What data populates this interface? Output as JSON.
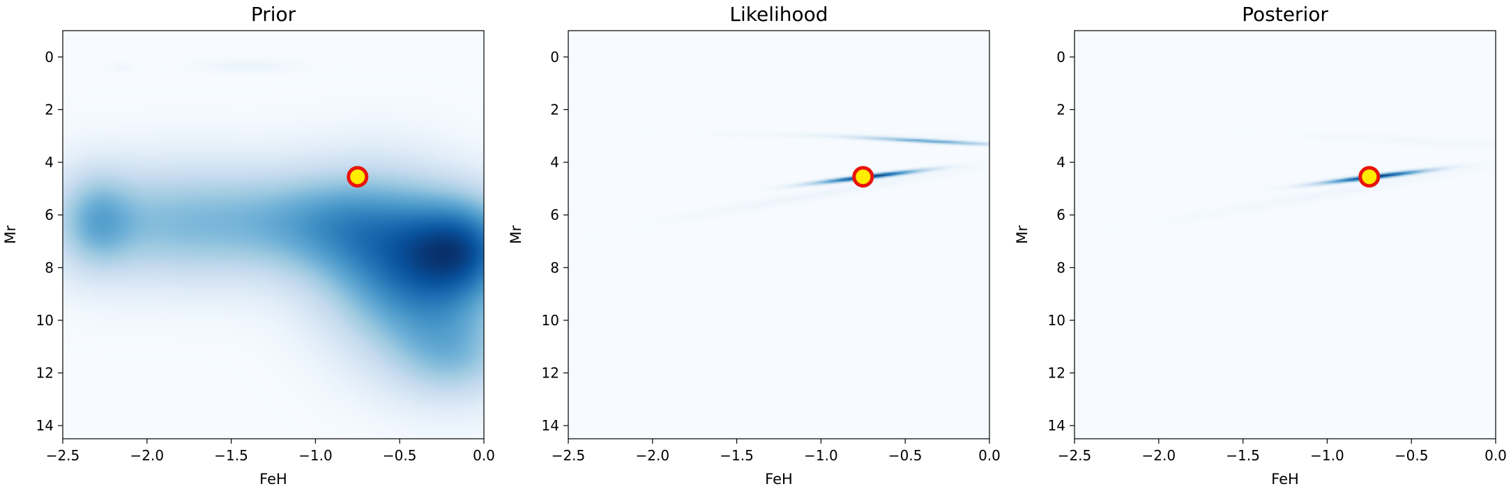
{
  "chart_data": [
    {
      "type": "heatmap",
      "title": "Prior",
      "xlabel": "FeH",
      "ylabel": "Mr",
      "xlim": [
        -2.5,
        0.0
      ],
      "ylim": [
        14.5,
        -1.0
      ],
      "xticks": [
        -2.5,
        -2.0,
        -1.5,
        -1.0,
        -0.5,
        0.0
      ],
      "xtick_labels": [
        "−2.5",
        "−2.0",
        "−1.5",
        "−1.0",
        "−0.5",
        "0.0"
      ],
      "yticks": [
        0,
        2,
        4,
        6,
        8,
        10,
        12,
        14
      ],
      "ytick_labels": [
        "0",
        "2",
        "4",
        "6",
        "8",
        "10",
        "12",
        "14"
      ],
      "colormap": "Blues",
      "marker": {
        "x": -0.75,
        "y": 4.55,
        "edge_color": "#e8140c",
        "face_color": "#ffec00"
      },
      "density_components": [
        {
          "cx": -1.8,
          "cy": 6.3,
          "sx": 0.55,
          "sy": 1.6,
          "w": 0.55
        },
        {
          "cx": -2.3,
          "cy": 6.2,
          "sx": 0.15,
          "sy": 1.3,
          "w": 0.35
        },
        {
          "cx": -1.0,
          "cy": 6.2,
          "sx": 0.35,
          "sy": 1.3,
          "w": 0.3
        },
        {
          "cx": -0.6,
          "cy": 7.0,
          "sx": 0.35,
          "sy": 2.0,
          "w": 0.6
        },
        {
          "cx": -0.1,
          "cy": 7.2,
          "sx": 0.25,
          "sy": 1.4,
          "w": 0.75
        },
        {
          "cx": -0.35,
          "cy": 9.5,
          "sx": 0.35,
          "sy": 2.0,
          "w": 0.5
        },
        {
          "cx": -0.15,
          "cy": 11.5,
          "sx": 0.25,
          "sy": 1.2,
          "w": 0.3
        },
        {
          "cx": -1.4,
          "cy": 0.35,
          "sx": 0.2,
          "sy": 0.15,
          "w": 0.08
        },
        {
          "cx": -2.15,
          "cy": 0.4,
          "sx": 0.05,
          "sy": 0.1,
          "w": 0.05
        }
      ]
    },
    {
      "type": "heatmap",
      "title": "Likelihood",
      "xlabel": "FeH",
      "ylabel": "Mr",
      "xlim": [
        -2.5,
        0.0
      ],
      "ylim": [
        14.5,
        -1.0
      ],
      "xticks": [
        -2.5,
        -2.0,
        -1.5,
        -1.0,
        -0.5,
        0.0
      ],
      "xtick_labels": [
        "−2.5",
        "−2.0",
        "−1.5",
        "−1.0",
        "−0.5",
        "0.0"
      ],
      "yticks": [
        0,
        2,
        4,
        6,
        8,
        10,
        12,
        14
      ],
      "ytick_labels": [
        "0",
        "2",
        "4",
        "6",
        "8",
        "10",
        "12",
        "14"
      ],
      "colormap": "Blues",
      "marker": {
        "x": -0.75,
        "y": 4.55,
        "edge_color": "#e8140c",
        "face_color": "#ffec00"
      },
      "density_components": [
        {
          "cx": -0.72,
          "cy": 4.55,
          "sx": 0.22,
          "sy": 0.06,
          "angle": -7,
          "w": 1.0
        },
        {
          "cx": -0.35,
          "cy": 3.2,
          "sx": 0.28,
          "sy": 0.05,
          "angle": 3,
          "w": 0.55
        },
        {
          "cx": -1.0,
          "cy": 5.2,
          "sx": 0.6,
          "sy": 0.12,
          "angle": -10,
          "w": 0.05
        },
        {
          "cx": -0.9,
          "cy": 3.0,
          "sx": 0.5,
          "sy": 0.08,
          "angle": 1,
          "w": 0.04
        }
      ]
    },
    {
      "type": "heatmap",
      "title": "Posterior",
      "xlabel": "FeH",
      "ylabel": "Mr",
      "xlim": [
        -2.5,
        0.0
      ],
      "ylim": [
        14.5,
        -1.0
      ],
      "xticks": [
        -2.5,
        -2.0,
        -1.5,
        -1.0,
        -0.5,
        0.0
      ],
      "xtick_labels": [
        "−2.5",
        "−2.0",
        "−1.5",
        "−1.0",
        "−0.5",
        "0.0"
      ],
      "yticks": [
        0,
        2,
        4,
        6,
        8,
        10,
        12,
        14
      ],
      "ytick_labels": [
        "0",
        "2",
        "4",
        "6",
        "8",
        "10",
        "12",
        "14"
      ],
      "colormap": "Blues",
      "marker": {
        "x": -0.75,
        "y": 4.55,
        "edge_color": "#e8140c",
        "face_color": "#ffec00"
      },
      "density_components": [
        {
          "cx": -0.72,
          "cy": 4.55,
          "sx": 0.22,
          "sy": 0.06,
          "angle": -7,
          "w": 1.0
        },
        {
          "cx": -1.0,
          "cy": 5.2,
          "sx": 0.6,
          "sy": 0.12,
          "angle": -10,
          "w": 0.04
        },
        {
          "cx": -0.45,
          "cy": 3.2,
          "sx": 0.5,
          "sy": 0.1,
          "angle": 3,
          "w": 0.03
        }
      ]
    }
  ]
}
